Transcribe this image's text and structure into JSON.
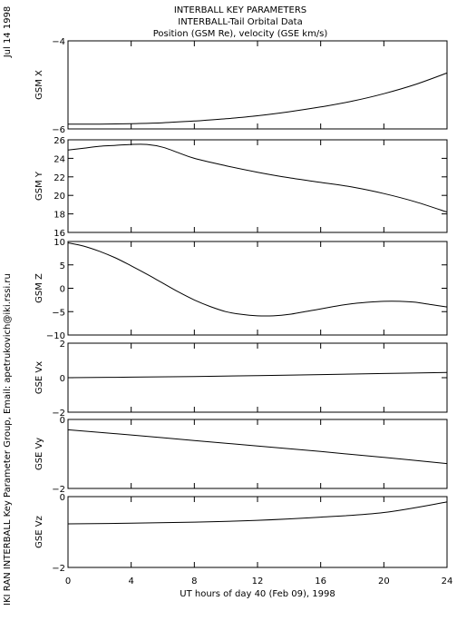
{
  "header": {
    "line1": "INTERBALL KEY PARAMETERS",
    "line2": "INTERBALL-Tail Orbital Data",
    "line3": "Position (GSM Re), velocity (GSE km/s)"
  },
  "side": {
    "date": "Jul 14 1998",
    "credit": "IKI RAN INTERBALL Key Parameter Group, Email: apetrukovich@iki.rssi.ru"
  },
  "chart_data": {
    "type": "line",
    "xlabel": "UT hours of day  40 (Feb 09), 1998",
    "xlim": [
      0,
      24
    ],
    "xticks": [
      0,
      4,
      8,
      12,
      16,
      20,
      24
    ],
    "panels": [
      {
        "ylabel": "GSM X",
        "ylim": [
          -6,
          -4
        ],
        "yticks": [
          -6,
          -4
        ],
        "x": [
          0,
          2,
          4,
          6,
          8,
          10,
          12,
          14,
          16,
          18,
          20,
          22,
          24
        ],
        "y": [
          -5.89,
          -5.89,
          -5.88,
          -5.86,
          -5.82,
          -5.77,
          -5.7,
          -5.61,
          -5.5,
          -5.37,
          -5.2,
          -4.99,
          -4.73
        ]
      },
      {
        "ylabel": "GSM Y",
        "ylim": [
          16,
          26
        ],
        "yticks": [
          16,
          18,
          20,
          22,
          24,
          26
        ],
        "x": [
          0,
          1,
          2,
          3,
          4,
          5,
          6,
          7,
          8,
          10,
          12,
          14,
          16,
          18,
          20,
          22,
          24
        ],
        "y": [
          24.9,
          25.1,
          25.3,
          25.4,
          25.5,
          25.5,
          25.2,
          24.6,
          24.0,
          23.2,
          22.5,
          21.9,
          21.4,
          20.9,
          20.2,
          19.3,
          18.2
        ]
      },
      {
        "ylabel": "GSM Z",
        "ylim": [
          -10,
          10
        ],
        "yticks": [
          -10,
          -5,
          0,
          5,
          10
        ],
        "x": [
          0,
          1,
          2,
          3,
          4,
          5,
          6,
          7,
          8,
          9,
          10,
          11,
          12,
          13,
          14,
          15,
          16,
          17,
          18,
          19,
          20,
          21,
          22,
          23,
          24
        ],
        "y": [
          9.7,
          9.0,
          7.9,
          6.5,
          4.8,
          3.0,
          1.1,
          -0.8,
          -2.5,
          -3.9,
          -5.0,
          -5.6,
          -5.9,
          -5.9,
          -5.6,
          -5.0,
          -4.4,
          -3.8,
          -3.3,
          -3.0,
          -2.8,
          -2.8,
          -3.0,
          -3.5,
          -4.0
        ]
      },
      {
        "ylabel": "GSE Vx",
        "ylim": [
          -2,
          2
        ],
        "yticks": [
          -2,
          0,
          2
        ],
        "x": [
          0,
          4,
          8,
          12,
          16,
          20,
          24
        ],
        "y": [
          0.0,
          0.03,
          0.07,
          0.12,
          0.18,
          0.24,
          0.3
        ]
      },
      {
        "ylabel": "GSE Vy",
        "ylim": [
          -2,
          0
        ],
        "yticks": [
          -2,
          0
        ],
        "x": [
          0,
          4,
          8,
          12,
          16,
          20,
          24
        ],
        "y": [
          -0.3,
          -0.45,
          -0.61,
          -0.77,
          -0.93,
          -1.1,
          -1.28
        ]
      },
      {
        "ylabel": "GSE Vz",
        "ylim": [
          -2,
          0
        ],
        "yticks": [
          -2,
          0
        ],
        "x": [
          0,
          4,
          8,
          12,
          16,
          20,
          24
        ],
        "y": [
          -0.77,
          -0.75,
          -0.72,
          -0.67,
          -0.58,
          -0.45,
          -0.15
        ]
      }
    ]
  }
}
